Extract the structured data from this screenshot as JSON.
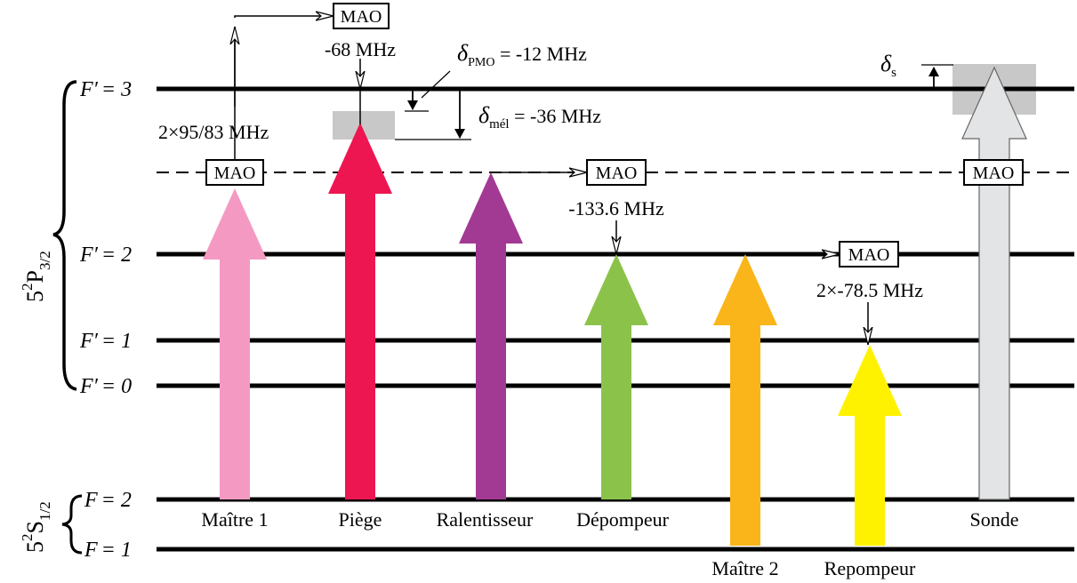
{
  "states": {
    "excited": {
      "base": "5",
      "sup": "2",
      "letter": "P",
      "sub": "3/2"
    },
    "ground": {
      "base": "5",
      "sup": "2",
      "letter": "S",
      "sub": "1/2"
    }
  },
  "levels": {
    "f3": {
      "var": "F′",
      "value": "= 3"
    },
    "f2": {
      "var": "F′",
      "value": "= 2"
    },
    "f1": {
      "var": "F′",
      "value": "= 1"
    },
    "f0": {
      "var": "F′",
      "value": "= 0"
    },
    "g2": {
      "var": "F",
      "value": "= 2"
    },
    "g1": {
      "var": "F",
      "value": "= 1"
    }
  },
  "mao_label": "MAO",
  "freq": {
    "piege": "-68 MHz",
    "double_pass": "2×95/83 MHz",
    "depompeur": "-133.6 MHz",
    "repompeur": "2×-78.5 MHz"
  },
  "deltas": {
    "pmo": {
      "symbol": "δ",
      "sub": "PMO",
      "value": " = -12 MHz"
    },
    "mel": {
      "symbol": "δ",
      "sub": "mél",
      "value": " = -36 MHz"
    },
    "s": {
      "symbol": "δ",
      "sub": "s"
    }
  },
  "beams": {
    "maitre1": {
      "label": "Maître 1",
      "color": "#f49ac2"
    },
    "piege": {
      "label": "Piège",
      "color": "#ed1651"
    },
    "ralentisseur": {
      "label": "Ralentisseur",
      "color": "#a23a93"
    },
    "depompeur": {
      "label": "Dépompeur",
      "color": "#8bc34a"
    },
    "maitre2": {
      "label": "Maître 2",
      "color": "#f9b51a"
    },
    "repompeur": {
      "label": "Repompeur",
      "color": "#fff200"
    },
    "sonde": {
      "label": "Sonde",
      "color": "#e3e4e6"
    }
  },
  "colors": {
    "shade": "#c8c8c8",
    "line": "#000000"
  }
}
